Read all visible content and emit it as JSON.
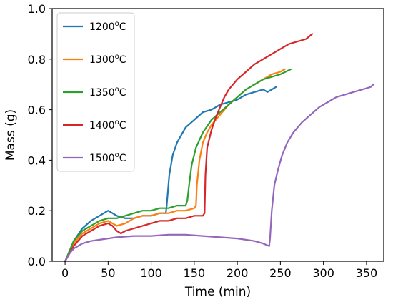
{
  "chart_data": {
    "type": "line",
    "title": "",
    "xlabel": "Time (min)",
    "ylabel": "Mass (g)",
    "xlim": [
      -15,
      370
    ],
    "ylim": [
      0.0,
      1.0
    ],
    "xticks": [
      0,
      50,
      100,
      150,
      200,
      250,
      300,
      350
    ],
    "yticks": [
      0.0,
      0.2,
      0.4,
      0.6,
      0.8,
      1.0
    ],
    "xtick_labels": [
      "0",
      "50",
      "100",
      "150",
      "200",
      "250",
      "300",
      "350"
    ],
    "ytick_labels": [
      "0.0",
      "0.2",
      "0.4",
      "0.6",
      "0.8",
      "1.0"
    ],
    "grid": false,
    "legend_position": "upper-left",
    "series": [
      {
        "name": "1200ºC",
        "name_base": "1200",
        "name_sup": "o",
        "name_suffix": "C",
        "color": "#1f77b4",
        "x": [
          0,
          5,
          10,
          20,
          30,
          40,
          45,
          50,
          55,
          60,
          70,
          80,
          90,
          100,
          110,
          117,
          118,
          121,
          125,
          130,
          135,
          140,
          150,
          160,
          170,
          180,
          190,
          200,
          210,
          220,
          230,
          235,
          240,
          245
        ],
        "y": [
          0.0,
          0.03,
          0.08,
          0.13,
          0.16,
          0.18,
          0.19,
          0.2,
          0.19,
          0.18,
          0.17,
          0.17,
          0.18,
          0.18,
          0.19,
          0.19,
          0.22,
          0.34,
          0.42,
          0.47,
          0.5,
          0.53,
          0.56,
          0.59,
          0.6,
          0.62,
          0.63,
          0.64,
          0.66,
          0.67,
          0.68,
          0.67,
          0.68,
          0.69
        ]
      },
      {
        "name": "1300ºC",
        "name_base": "1300",
        "name_sup": "o",
        "name_suffix": "C",
        "color": "#ff7f0e",
        "x": [
          0,
          5,
          10,
          20,
          30,
          40,
          50,
          55,
          60,
          70,
          80,
          90,
          100,
          110,
          120,
          130,
          140,
          150,
          152,
          153,
          156,
          160,
          165,
          170,
          180,
          190,
          200,
          210,
          220,
          230,
          240,
          250,
          255
        ],
        "y": [
          0.0,
          0.03,
          0.07,
          0.11,
          0.13,
          0.15,
          0.16,
          0.15,
          0.14,
          0.15,
          0.17,
          0.18,
          0.18,
          0.19,
          0.19,
          0.2,
          0.2,
          0.21,
          0.22,
          0.3,
          0.4,
          0.47,
          0.51,
          0.54,
          0.58,
          0.62,
          0.65,
          0.68,
          0.7,
          0.72,
          0.74,
          0.75,
          0.76
        ]
      },
      {
        "name": "1350ºC",
        "name_base": "1350",
        "name_sup": "o",
        "name_suffix": "C",
        "color": "#2ca02c",
        "x": [
          0,
          5,
          10,
          20,
          30,
          40,
          50,
          60,
          70,
          80,
          90,
          100,
          110,
          120,
          130,
          140,
          142,
          144,
          147,
          152,
          160,
          170,
          180,
          190,
          200,
          210,
          220,
          230,
          240,
          250,
          262
        ],
        "y": [
          0.0,
          0.04,
          0.08,
          0.12,
          0.14,
          0.16,
          0.17,
          0.17,
          0.18,
          0.19,
          0.2,
          0.2,
          0.21,
          0.21,
          0.22,
          0.22,
          0.24,
          0.3,
          0.38,
          0.45,
          0.51,
          0.56,
          0.59,
          0.62,
          0.65,
          0.68,
          0.7,
          0.72,
          0.73,
          0.74,
          0.76
        ]
      },
      {
        "name": "1400ºC",
        "name_base": "1400",
        "name_sup": "o",
        "name_suffix": "C",
        "color": "#d62728",
        "x": [
          0,
          5,
          10,
          20,
          30,
          40,
          50,
          55,
          60,
          65,
          70,
          80,
          90,
          100,
          110,
          120,
          130,
          140,
          150,
          160,
          162,
          163,
          165,
          170,
          175,
          180,
          185,
          190,
          200,
          210,
          220,
          230,
          240,
          250,
          260,
          270,
          280,
          287
        ],
        "y": [
          0.0,
          0.03,
          0.06,
          0.1,
          0.12,
          0.14,
          0.15,
          0.14,
          0.12,
          0.11,
          0.12,
          0.13,
          0.14,
          0.15,
          0.16,
          0.16,
          0.17,
          0.17,
          0.18,
          0.18,
          0.19,
          0.34,
          0.45,
          0.52,
          0.57,
          0.61,
          0.65,
          0.68,
          0.72,
          0.75,
          0.78,
          0.8,
          0.82,
          0.84,
          0.86,
          0.87,
          0.88,
          0.9
        ]
      },
      {
        "name": "1500ºC",
        "name_base": "1500",
        "name_sup": "o",
        "name_suffix": "C",
        "color": "#9467bd",
        "x": [
          0,
          5,
          10,
          20,
          30,
          40,
          50,
          60,
          80,
          100,
          120,
          140,
          160,
          180,
          200,
          220,
          230,
          237,
          238,
          240,
          243,
          247,
          252,
          258,
          265,
          275,
          285,
          295,
          305,
          315,
          325,
          335,
          345,
          355,
          358
        ],
        "y": [
          0.0,
          0.03,
          0.05,
          0.07,
          0.08,
          0.085,
          0.09,
          0.095,
          0.1,
          0.1,
          0.105,
          0.105,
          0.1,
          0.095,
          0.09,
          0.08,
          0.07,
          0.06,
          0.09,
          0.2,
          0.3,
          0.36,
          0.42,
          0.47,
          0.51,
          0.55,
          0.58,
          0.61,
          0.63,
          0.65,
          0.66,
          0.67,
          0.68,
          0.69,
          0.7
        ]
      }
    ]
  }
}
